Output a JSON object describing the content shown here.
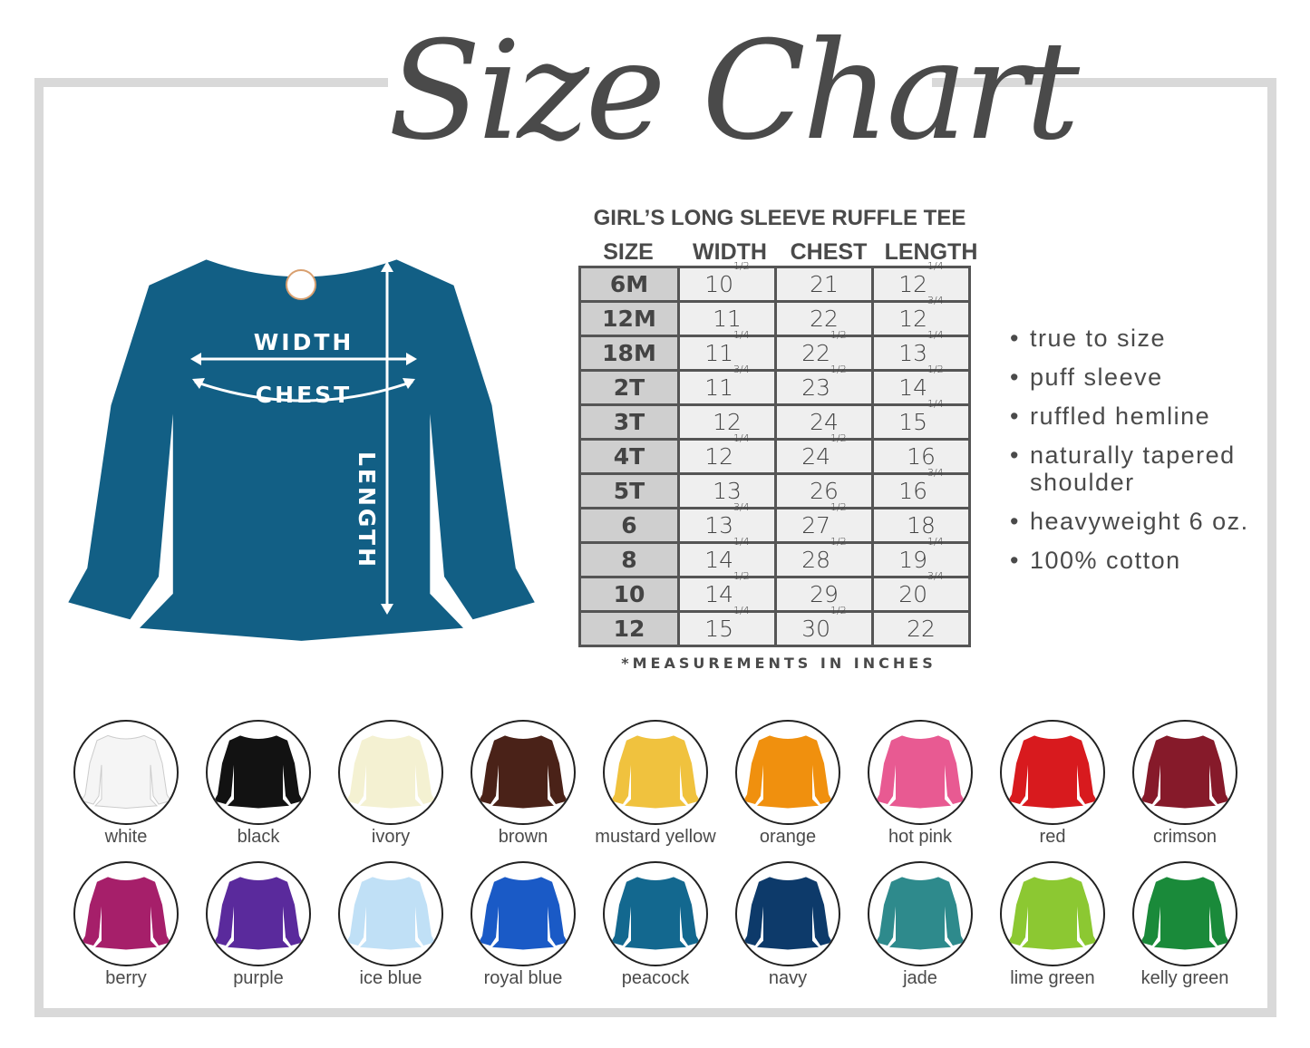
{
  "title": "Size Chart",
  "garment": {
    "color": "#125f85",
    "labels": {
      "width": "WIDTH",
      "chest": "CHEST",
      "length": "LENGTH"
    }
  },
  "table": {
    "title": "GIRL’S LONG SLEEVE RUFFLE TEE",
    "headers": [
      "SIZE",
      "WIDTH",
      "CHEST",
      "LENGTH"
    ],
    "rows": [
      [
        "6M",
        "10 1/2",
        "21",
        "12 1/4"
      ],
      [
        "12M",
        "11",
        "22",
        "12 3/4"
      ],
      [
        "18M",
        "11 1/4",
        "22 1/2",
        "13 1/4"
      ],
      [
        "2T",
        "11 3/4",
        "23 1/2",
        "14 1/2"
      ],
      [
        "3T",
        "12",
        "24",
        "15 1/4"
      ],
      [
        "4T",
        "12 1/4",
        "24 1/2",
        "16"
      ],
      [
        "5T",
        "13",
        "26",
        "16 3/4"
      ],
      [
        "6",
        "13 3/4",
        "27 1/2",
        "18"
      ],
      [
        "8",
        "14 1/4",
        "28 1/2",
        "19 1/4"
      ],
      [
        "10",
        "14 1/2",
        "29",
        "20 3/4"
      ],
      [
        "12",
        "15 1/4",
        "30 1/2",
        "22"
      ]
    ],
    "note": "*MEASUREMENTS IN INCHES"
  },
  "features": [
    "true to size",
    "puff sleeve",
    "ruffled hemline",
    "naturally tapered shoulder",
    "heavyweight 6 oz.",
    "100% cotton"
  ],
  "colors": [
    {
      "name": "white",
      "hex": "#f5f5f5"
    },
    {
      "name": "black",
      "hex": "#121212"
    },
    {
      "name": "ivory",
      "hex": "#f4f1d2"
    },
    {
      "name": "brown",
      "hex": "#4a2218"
    },
    {
      "name": "mustard yellow",
      "hex": "#f0c23e"
    },
    {
      "name": "orange",
      "hex": "#f0900e"
    },
    {
      "name": "hot pink",
      "hex": "#e85a92"
    },
    {
      "name": "red",
      "hex": "#d81a1e"
    },
    {
      "name": "crimson",
      "hex": "#861a2a"
    },
    {
      "name": "berry",
      "hex": "#a61f6a"
    },
    {
      "name": "purple",
      "hex": "#5a2a9c"
    },
    {
      "name": "ice blue",
      "hex": "#c0e0f6"
    },
    {
      "name": "royal blue",
      "hex": "#1a5ac6"
    },
    {
      "name": "peacock",
      "hex": "#13688f"
    },
    {
      "name": "navy",
      "hex": "#0d3a6a"
    },
    {
      "name": "jade",
      "hex": "#2e8a8c"
    },
    {
      "name": "lime green",
      "hex": "#8cc832"
    },
    {
      "name": "kelly green",
      "hex": "#1a8a3a"
    }
  ]
}
